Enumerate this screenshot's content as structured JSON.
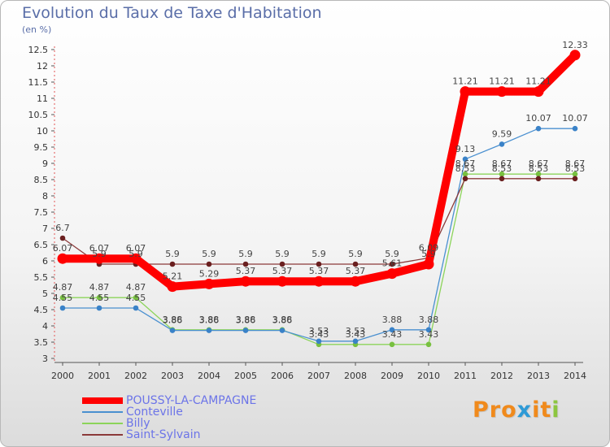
{
  "title": "Evolution du Taux de Taxe d'Habitation",
  "unit": "(en %)",
  "logo": {
    "p1": "Pro",
    "x": "x",
    "i": "i",
    "t": "t",
    "i2": "i"
  },
  "chart_data": {
    "type": "line",
    "title": "Evolution du Taux de Taxe d'Habitation",
    "ylabel": "(en %)",
    "xlabel": "",
    "ylim": [
      3,
      12.5
    ],
    "grid": false,
    "legend_position": "bottom-left",
    "x": [
      2000,
      2001,
      2002,
      2003,
      2004,
      2005,
      2006,
      2007,
      2008,
      2009,
      2010,
      2011,
      2012,
      2013,
      2014
    ],
    "yticks": [
      "3",
      "3.5",
      "4",
      "4.5",
      "5",
      "5.5",
      "6",
      "6.5",
      "7",
      "7.5",
      "8",
      "8.5",
      "9",
      "9.5",
      "10",
      "10.5",
      "11",
      "11.5",
      "12",
      "12.5"
    ],
    "series": [
      {
        "name": "POUSSY-LA-CAMPAGNE",
        "color": "#ff0000",
        "values": [
          6.07,
          6.07,
          6.07,
          5.21,
          5.29,
          5.37,
          5.37,
          5.37,
          5.37,
          5.61,
          5.9,
          11.21,
          11.21,
          11.21,
          12.33
        ],
        "labels": [
          "6.07",
          "6.07",
          "6.07",
          "5.21",
          "5.29",
          "5.37",
          "5.37",
          "5.37",
          "5.37",
          "5.61",
          "5.9",
          "11.21",
          "11.21",
          "11.21",
          "12.33"
        ]
      },
      {
        "name": "Conteville",
        "color": "#4a90d0",
        "values": [
          4.55,
          4.55,
          4.55,
          3.86,
          3.86,
          3.86,
          3.86,
          3.53,
          3.53,
          3.88,
          3.88,
          9.13,
          9.59,
          10.07,
          10.07
        ],
        "labels": [
          "4.55",
          "4.55",
          "4.55",
          "3.86",
          "3.86",
          "3.86",
          "3.86",
          "3.53",
          "3.53",
          "3.88",
          "3.88",
          "9.13",
          "9.59",
          "10.07",
          "10.07"
        ]
      },
      {
        "name": "Billy",
        "color": "#8cd45a",
        "values": [
          4.87,
          4.87,
          4.87,
          3.88,
          3.88,
          3.88,
          3.88,
          3.43,
          3.43,
          3.43,
          3.43,
          8.67,
          8.67,
          8.67,
          8.67
        ],
        "labels": [
          "4.87",
          "4.87",
          "4.87",
          "3.88",
          "3.88",
          "3.88",
          "3.88",
          "3.43",
          "3.43",
          "3.43",
          "3.43",
          "8.67",
          "8.67",
          "8.67",
          "8.67"
        ]
      },
      {
        "name": "Saint-Sylvain",
        "color": "#8b3a3a",
        "values": [
          6.7,
          5.9,
          5.9,
          5.9,
          5.9,
          5.9,
          5.9,
          5.9,
          5.9,
          5.9,
          6.09,
          8.53,
          8.53,
          8.53,
          8.53
        ],
        "labels": [
          "6.7",
          "5.9",
          "5.9",
          "5.9",
          "5.9",
          "5.9",
          "5.9",
          "5.9",
          "5.9",
          "5.9",
          "6.09",
          "8.53",
          "8.53",
          "8.53",
          "8.53"
        ]
      }
    ]
  }
}
